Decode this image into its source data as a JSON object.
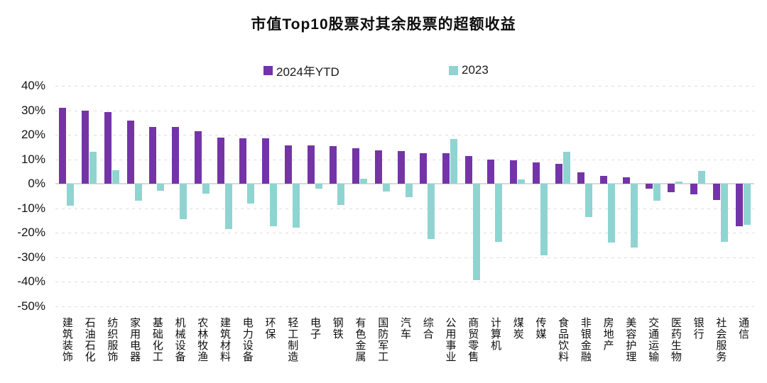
{
  "title": "市值Top10股票对其余股票的超额收益",
  "legend": {
    "series_2024_label": "2024年YTD",
    "series_2023_label": "2023"
  },
  "colors": {
    "series_2024": "#7434a8",
    "series_2023": "#8fd4d1",
    "gridline": "#dedede",
    "zero_axis": "#d9d9d9",
    "text": "#111111"
  },
  "chart_data": {
    "type": "bar",
    "title": "市值Top10股票对其余股票的超额收益",
    "xlabel": "",
    "ylabel": "",
    "ylim": [
      -50,
      40
    ],
    "ytick_step": 10,
    "ytick_labels": [
      "40%",
      "30%",
      "20%",
      "10%",
      "0%",
      "-10%",
      "-20%",
      "-30%",
      "-40%",
      "-50%"
    ],
    "ytick_values": [
      40,
      30,
      20,
      10,
      0,
      -10,
      -20,
      -30,
      -40,
      -50
    ],
    "grid": "horizontal-dashed",
    "legend_position": "top",
    "categories": [
      "建筑装饰",
      "石油石化",
      "纺织服饰",
      "家用电器",
      "基础化工",
      "机械设备",
      "农林牧渔",
      "建筑材料",
      "电力设备",
      "环保",
      "轻工制造",
      "电子",
      "钢铁",
      "有色金属",
      "国防军工",
      "汽车",
      "综合",
      "公用事业",
      "商贸零售",
      "计算机",
      "煤炭",
      "传媒",
      "食品饮料",
      "非银金融",
      "房地产",
      "美容护理",
      "交通运输",
      "医药生物",
      "银行",
      "社会服务",
      "通信"
    ],
    "series": [
      {
        "name": "2024年YTD",
        "color": "#7434a8",
        "values": [
          31.0,
          29.8,
          29.3,
          25.7,
          23.2,
          23.1,
          21.6,
          19.0,
          18.7,
          18.6,
          15.8,
          15.7,
          15.5,
          14.6,
          13.8,
          13.4,
          12.6,
          12.4,
          11.4,
          9.9,
          9.7,
          8.8,
          8.2,
          4.8,
          3.3,
          2.8,
          -2.1,
          -3.5,
          -4.2,
          -6.5,
          -17.3
        ]
      },
      {
        "name": "2023",
        "color": "#8fd4d1",
        "values": [
          -8.9,
          13.0,
          5.6,
          -7.0,
          -2.9,
          -14.4,
          -3.9,
          -18.4,
          -8.0,
          -17.3,
          -17.8,
          -2.1,
          -8.7,
          2.2,
          -3.1,
          -5.5,
          -22.5,
          18.4,
          -39.3,
          -23.7,
          1.9,
          -29.2,
          13.0,
          -13.6,
          -23.9,
          -26.1,
          -6.8,
          0.8,
          5.2,
          -23.6,
          -16.8
        ]
      }
    ]
  }
}
